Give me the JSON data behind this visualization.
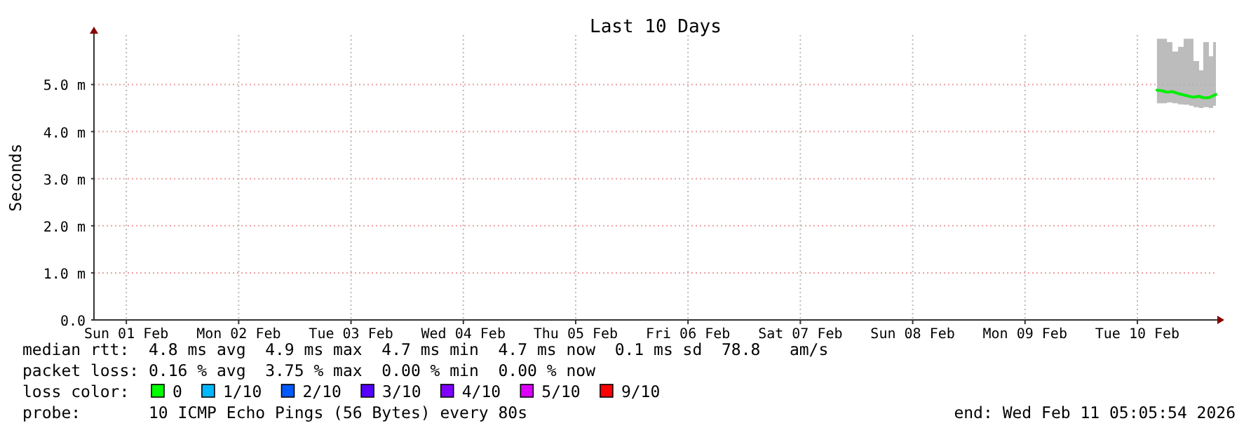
{
  "chart_data": {
    "type": "line",
    "title": "Last 10 Days",
    "ylabel": "Seconds",
    "xlim": [
      "2026-02-01T05:05",
      "2026-02-11T05:05"
    ],
    "xticks": [
      {
        "value": "2026-02-01T12:00",
        "label": "Sun 01 Feb"
      },
      {
        "value": "2026-02-02T12:00",
        "label": "Mon 02 Feb"
      },
      {
        "value": "2026-02-03T12:00",
        "label": "Tue 03 Feb"
      },
      {
        "value": "2026-02-04T12:00",
        "label": "Wed 04 Feb"
      },
      {
        "value": "2026-02-05T12:00",
        "label": "Thu 05 Feb"
      },
      {
        "value": "2026-02-06T12:00",
        "label": "Fri 06 Feb"
      },
      {
        "value": "2026-02-07T12:00",
        "label": "Sat 07 Feb"
      },
      {
        "value": "2026-02-08T12:00",
        "label": "Sun 08 Feb"
      },
      {
        "value": "2026-02-09T12:00",
        "label": "Mon 09 Feb"
      },
      {
        "value": "2026-02-10T12:00",
        "label": "Tue 10 Feb"
      }
    ],
    "ylim": [
      0,
      6.05
    ],
    "yticks": [
      {
        "value": 0,
        "label": "0.0"
      },
      {
        "value": 1,
        "label": "1.0 m"
      },
      {
        "value": 2,
        "label": "2.0 m"
      },
      {
        "value": 3,
        "label": "3.0 m"
      },
      {
        "value": 4,
        "label": "4.0 m"
      },
      {
        "value": 5,
        "label": "5.0 m"
      }
    ],
    "grid": true,
    "marker": "none",
    "line_style": "solid",
    "series": [
      {
        "color": "#00ee00",
        "x": [
          "2026-02-10T16:11",
          "2026-02-10T17:07",
          "2026-02-10T18:19",
          "2026-02-10T19:29",
          "2026-02-10T20:41",
          "2026-02-10T21:53",
          "2026-02-10T23:05",
          "2026-02-10T23:59",
          "2026-02-11T01:11",
          "2026-02-11T02:05",
          "2026-02-11T03:17",
          "2026-02-11T04:11",
          "2026-02-11T04:47"
        ],
        "values": [
          4.88,
          4.87,
          4.84,
          4.85,
          4.81,
          4.78,
          4.75,
          4.73,
          4.75,
          4.72,
          4.72,
          4.76,
          4.79
        ],
        "lower": [
          4.6,
          4.6,
          4.62,
          4.6,
          4.58,
          4.57,
          4.55,
          4.52,
          4.5,
          4.52,
          4.5,
          4.55,
          4.6
        ],
        "upper": [
          5.97,
          5.97,
          5.9,
          5.7,
          5.8,
          5.97,
          5.97,
          5.5,
          5.3,
          5.9,
          5.6,
          5.9,
          5.97
        ]
      }
    ],
    "annotations": [
      "median rtt:  4.8 ms avg  4.9 ms max  4.7 ms min  4.7 ms now  0.1 ms sd  78.8   am/s",
      "packet loss: 0.16 % avg  3.75 % max  0.00 % min  0.00 % now",
      "loss color:",
      "0",
      "1/10",
      "2/10",
      "3/10",
      "4/10",
      "5/10",
      "9/10",
      "probe:       10 ICMP Echo Pings (56 Bytes) every 80s",
      "end: Wed Feb 11 05:05:54 2026"
    ]
  }
}
